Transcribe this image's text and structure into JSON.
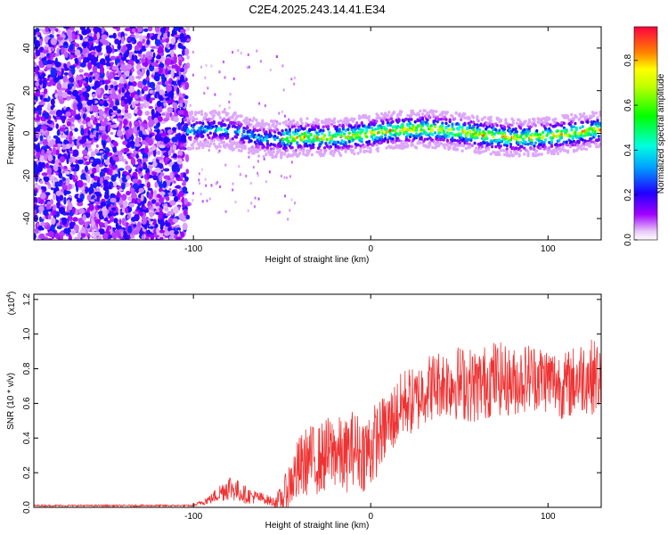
{
  "chart_data": [
    {
      "type": "heatmap",
      "title": "C2E4.2025.243.14.41.E34",
      "xlabel": "Height of straight line (km)",
      "ylabel": "Frequency (Hz)",
      "xlim": [
        -190,
        130
      ],
      "ylim": [
        -50,
        50
      ],
      "xticks": [
        "-100",
        "0",
        "100"
      ],
      "yticks": [
        "-40",
        "-20",
        "0",
        "20",
        "40"
      ],
      "colorbar": {
        "label": "Normalized spectral amplitude",
        "range": [
          0.0,
          0.95
        ],
        "ticks": [
          "0.0",
          "0.2",
          "0.4",
          "0.6",
          "0.8"
        ]
      },
      "regions": [
        {
          "name": "broadband noise",
          "x_range": [
            -190,
            -103
          ],
          "freq_range": [
            -50,
            50
          ],
          "amplitude": [
            0.0,
            0.25
          ]
        },
        {
          "name": "signal band",
          "x_range": [
            -103,
            130
          ],
          "center_freq": [
            0,
            2
          ],
          "half_width_hz": 4,
          "peak_amplitude": 0.95
        }
      ]
    },
    {
      "type": "line",
      "title": "",
      "xlabel": "Height of straight line (km)",
      "ylabel": "SNR (10 * v/v)",
      "scale_label": "(x10^4)",
      "scale_base": "(x10",
      "scale_exp": "4",
      "scale_close": ")",
      "xlim": [
        -190,
        130
      ],
      "ylim": [
        0.0,
        1.23
      ],
      "xticks": [
        "-100",
        "0",
        "100"
      ],
      "yticks": [
        "0.0",
        "0.2",
        "0.4",
        "0.6",
        "0.8",
        "1.0",
        "1.2"
      ],
      "color": "#ef3333",
      "series": [
        {
          "name": "SNR",
          "x": [
            -190,
            -100,
            -90,
            -80,
            -70,
            -60,
            -55,
            -50,
            -45,
            -40,
            -35,
            -30,
            -25,
            -20,
            -15,
            -10,
            -5,
            0,
            5,
            10,
            15,
            20,
            25,
            30,
            40,
            50,
            60,
            70,
            80,
            90,
            100,
            110,
            120,
            130
          ],
          "y": [
            0.01,
            0.01,
            0.05,
            0.12,
            0.07,
            0.05,
            0.03,
            0.05,
            0.15,
            0.22,
            0.28,
            0.27,
            0.3,
            0.33,
            0.28,
            0.35,
            0.31,
            0.34,
            0.42,
            0.48,
            0.55,
            0.62,
            0.6,
            0.68,
            0.72,
            0.72,
            0.7,
            0.75,
            0.72,
            0.76,
            0.74,
            0.7,
            0.76,
            0.75
          ],
          "spread": [
            0.005,
            0.005,
            0.03,
            0.08,
            0.05,
            0.03,
            0.03,
            0.08,
            0.15,
            0.2,
            0.2,
            0.2,
            0.22,
            0.22,
            0.22,
            0.22,
            0.22,
            0.25,
            0.2,
            0.2,
            0.2,
            0.2,
            0.2,
            0.2,
            0.2,
            0.22,
            0.22,
            0.22,
            0.2,
            0.2,
            0.2,
            0.2,
            0.22,
            0.22
          ]
        }
      ]
    }
  ]
}
